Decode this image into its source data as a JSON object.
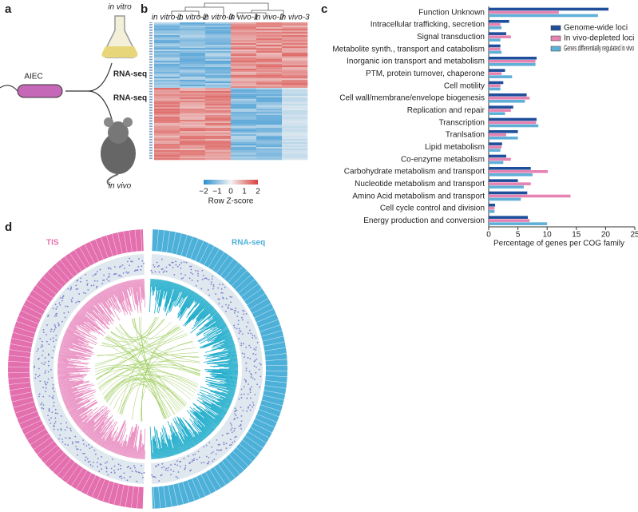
{
  "panel_a": {
    "label": "a",
    "in_vitro": "in vitro",
    "strain": "AIEC",
    "rnaseq_top": "RNA-seq",
    "rnaseq_bottom": "RNA-seq",
    "in_vivo": "in vivo"
  },
  "panel_b": {
    "label": "b",
    "columns": [
      "in vitro-1",
      "in vitro-2",
      "in vitro-3",
      "in vivo-1",
      "in vivo-2",
      "in vivo-3"
    ],
    "colorbar_ticks": [
      {
        "value": -2,
        "label": "−2"
      },
      {
        "value": -1,
        "label": "−1"
      },
      0,
      1,
      2
    ],
    "colorbar_title": "Row Z-score"
  },
  "panel_c": {
    "label": "c"
  },
  "chart_data": {
    "type": "barh",
    "x_label": "Percentage of genes per COG family",
    "categories": [
      "Function Unknown",
      "Intracellular trafficking, secretion",
      "Signal transduction",
      "Metabolite synth., transport and catabolism",
      "Inorganic ion transport and metabolism",
      "PTM, protein turnover, chaperone",
      "Cell motility",
      "Cell wall/membrane/envelope biogenesis",
      "Replication and repair",
      "Transcription",
      "Tranlsation",
      "Lipid metabolism",
      "Co-enzyme metabolism",
      "Carbohydrate metabolism and transport",
      "Nucleotide metabolism and transport",
      "Amino Acid metabolism and transport",
      "Cell cycle control and division",
      "Energy production and conversion"
    ],
    "series": [
      {
        "name": "Genome-wide loci",
        "color": "#1f4f9b",
        "values": [
          20.5,
          3.5,
          3,
          2,
          8.2,
          2.8,
          2.5,
          6.5,
          4.2,
          8.2,
          5,
          2.3,
          3,
          7.2,
          5,
          6.6,
          1.1,
          6.7
        ]
      },
      {
        "name": "In vivo-depleted loci",
        "color": "#e583b2",
        "values": [
          12,
          2,
          3.8,
          2,
          8,
          2.2,
          2,
          7,
          3.8,
          8.1,
          3,
          2.2,
          3.8,
          10.1,
          7.2,
          14,
          1,
          7
        ]
      },
      {
        "name": "Genes differentially regulated in vivo",
        "color": "#5fb0d8",
        "values": [
          18.7,
          2.2,
          2,
          2.2,
          8,
          4,
          2,
          6.2,
          2.8,
          8.5,
          5,
          2,
          2.5,
          7.5,
          6,
          5.5,
          1,
          10
        ]
      }
    ],
    "xlim": [
      0,
      25
    ],
    "xticks": [
      0,
      5,
      10,
      15,
      20,
      25
    ],
    "legend": "upper right"
  },
  "panel_d": {
    "label": "d",
    "left": "TIS",
    "right": "RNA-seq"
  }
}
